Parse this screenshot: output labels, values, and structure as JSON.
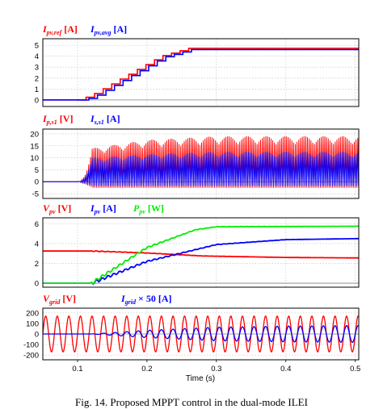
{
  "figure": {
    "caption": "Fig. 14. Proposed MPPT control in the dual-mode ILEI",
    "xlabel": "Time (s)",
    "x_ticks": [
      "0.1",
      "0.2",
      "0.3",
      "0.4",
      "0.5"
    ]
  },
  "colors": {
    "red": "#ff0000",
    "blue": "#0000ff",
    "green": "#00ee00",
    "zero": "#808080"
  },
  "chart_data": [
    {
      "type": "line",
      "panel": 1,
      "legend": [
        {
          "base": "I",
          "sub": "pv,ref",
          "unit": " [A]",
          "color": "#ff0000"
        },
        {
          "base": "I",
          "sub": "pv,avg",
          "unit": " [A]",
          "color": "#0000ff"
        }
      ],
      "x_range": [
        0.05,
        0.505
      ],
      "ylim": [
        -0.6,
        5.6
      ],
      "y_ticks": [
        0,
        1,
        2,
        3,
        4,
        5
      ],
      "series": [
        {
          "color": "#ff0000",
          "kind": "staircase",
          "points": [
            [
              0.05,
              0
            ],
            [
              0.1,
              0
            ],
            [
              0.118,
              0.35
            ],
            [
              0.22,
              4.0
            ],
            [
              0.26,
              4.72
            ],
            [
              0.505,
              4.72
            ]
          ]
        },
        {
          "color": "#0000ff",
          "kind": "staircase",
          "points": [
            [
              0.05,
              0
            ],
            [
              0.104,
              0
            ],
            [
              0.122,
              0.2
            ],
            [
              0.224,
              3.9
            ],
            [
              0.264,
              4.6
            ],
            [
              0.505,
              4.6
            ]
          ]
        }
      ]
    },
    {
      "type": "line",
      "panel": 2,
      "legend": [
        {
          "base": "I",
          "sub": "p,s1",
          "unit": " [V]",
          "color": "#ff0000"
        },
        {
          "base": "I",
          "sub": "s,s1",
          "unit": " [A]",
          "color": "#0000ff"
        }
      ],
      "x_range": [
        0.05,
        0.505
      ],
      "ylim": [
        -7,
        22
      ],
      "y_ticks": [
        -5,
        0,
        5,
        10,
        15,
        20
      ],
      "series": [
        {
          "color": "#ff0000",
          "kind": "pulses",
          "points": [
            [
              0.1,
              0
            ],
            [
              0.12,
              14
            ],
            [
              0.2,
              17.5
            ],
            [
              0.3,
              19
            ],
            [
              0.505,
              19
            ]
          ]
        },
        {
          "color": "#0000ff",
          "kind": "pulses",
          "points": [
            [
              0.1,
              0
            ],
            [
              0.12,
              10
            ],
            [
              0.2,
              11.5
            ],
            [
              0.3,
              12.5
            ],
            [
              0.505,
              12.5
            ]
          ]
        }
      ]
    },
    {
      "type": "line",
      "panel": 3,
      "legend": [
        {
          "base": "V",
          "sub": "pv",
          "unit": " [V]",
          "color": "#ff0000"
        },
        {
          "base": "I",
          "sub": "pv",
          "unit": " [A]",
          "color": "#0000ff"
        },
        {
          "base": "P",
          "sub": "pv",
          "unit": " [W]",
          "color": "#00ee00"
        }
      ],
      "x_range": [
        0.05,
        0.505
      ],
      "ylim": [
        -0.4,
        6.6
      ],
      "y_ticks": [
        0,
        2,
        4,
        6
      ],
      "series": [
        {
          "color": "#ff0000",
          "kind": "smooth",
          "points": [
            [
              0.05,
              3.25
            ],
            [
              0.12,
              3.25
            ],
            [
              0.2,
              3.05
            ],
            [
              0.28,
              2.75
            ],
            [
              0.4,
              2.6
            ],
            [
              0.505,
              2.55
            ]
          ]
        },
        {
          "color": "#0000ff",
          "kind": "smooth",
          "points": [
            [
              0.05,
              0
            ],
            [
              0.12,
              0
            ],
            [
              0.2,
              2.2
            ],
            [
              0.3,
              3.9
            ],
            [
              0.4,
              4.4
            ],
            [
              0.505,
              4.5
            ]
          ]
        },
        {
          "color": "#00ee00",
          "kind": "smooth",
          "points": [
            [
              0.05,
              0
            ],
            [
              0.12,
              0
            ],
            [
              0.2,
              3.6
            ],
            [
              0.27,
              5.4
            ],
            [
              0.3,
              5.7
            ],
            [
              0.505,
              5.75
            ]
          ]
        }
      ]
    },
    {
      "type": "line",
      "panel": 4,
      "legend": [
        {
          "base": "V",
          "sub": "grid",
          "unit": " [V]",
          "color": "#ff0000"
        },
        {
          "base": "I",
          "sub": "grid",
          "unit": " × 50 [A]",
          "color": "#0000ff"
        }
      ],
      "x_range": [
        0.05,
        0.505
      ],
      "ylim": [
        -245,
        245
      ],
      "y_ticks": [
        -200,
        -100,
        0,
        100,
        200
      ],
      "series": [
        {
          "color": "#ff0000",
          "kind": "sine",
          "frequency_hz": 60,
          "amplitude": [
            [
              0.05,
              170
            ],
            [
              0.505,
              170
            ]
          ]
        },
        {
          "color": "#0000ff",
          "kind": "sine",
          "frequency_hz": 60,
          "amplitude": [
            [
              0.05,
              0
            ],
            [
              0.12,
              0
            ],
            [
              0.2,
              35
            ],
            [
              0.3,
              65
            ],
            [
              0.4,
              75
            ],
            [
              0.505,
              80
            ]
          ]
        }
      ]
    }
  ]
}
